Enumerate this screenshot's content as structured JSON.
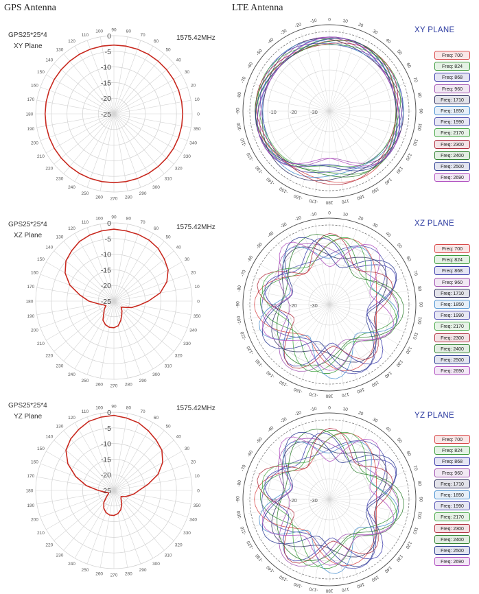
{
  "headers": {
    "gps": "GPS Antenna",
    "lte": "LTE Antenna"
  },
  "colors": {
    "gps_trace": "#c8281e",
    "lte_palette": [
      "#d84848",
      "#3c9a3c",
      "#3a3aaa",
      "#a050b0",
      "#303060",
      "#4a90d0",
      "#5050b0",
      "#48a848",
      "#b03040",
      "#308030",
      "#2a3a90",
      "#b050c0"
    ]
  },
  "gps_panels": [
    {
      "name": "GPS25*25*4",
      "plane": "XY Plane",
      "freq": "1575.42MHz",
      "angle_labels": [
        "0",
        "10",
        "20",
        "30",
        "40",
        "50",
        "60",
        "70",
        "80",
        "90",
        "100",
        "110",
        "120",
        "130",
        "140",
        "150",
        "160",
        "170",
        "180",
        "190",
        "200",
        "210",
        "220",
        "230",
        "240",
        "250",
        "260",
        "270",
        "280",
        "290",
        "300",
        "310",
        "320",
        "330",
        "340",
        "350"
      ],
      "radial_labels": [
        "0",
        "-5",
        "-10",
        "-15",
        "-20",
        "-25"
      ]
    },
    {
      "name": "GPS25*25*4",
      "plane": "XZ Plane",
      "freq": "1575.42MHz",
      "angle_labels": [
        "0",
        "10",
        "20",
        "30",
        "40",
        "50",
        "60",
        "70",
        "80",
        "90",
        "100",
        "110",
        "120",
        "130",
        "140",
        "150",
        "160",
        "170",
        "180",
        "190",
        "200",
        "210",
        "220",
        "230",
        "240",
        "250",
        "260",
        "270",
        "280",
        "290",
        "300",
        "310",
        "320",
        "330",
        "340",
        "350"
      ],
      "radial_labels": [
        "0",
        "-5",
        "-10",
        "-15",
        "-20",
        "-25"
      ]
    },
    {
      "name": "GPS25*25*4",
      "plane": "YZ Plane",
      "freq": "1575.42MHz",
      "angle_labels": [
        "0",
        "10",
        "20",
        "30",
        "40",
        "50",
        "60",
        "70",
        "80",
        "90",
        "100",
        "110",
        "120",
        "130",
        "140",
        "150",
        "160",
        "170",
        "180",
        "190",
        "200",
        "210",
        "220",
        "230",
        "240",
        "250",
        "260",
        "270",
        "280",
        "290",
        "300",
        "310",
        "320",
        "330",
        "340",
        "350"
      ],
      "radial_labels": [
        "0",
        "-5",
        "-10",
        "-15",
        "-20",
        "-25"
      ]
    }
  ],
  "lte_panels": [
    {
      "title": "XY PLANE",
      "angle_labels": [
        "0",
        "10",
        "20",
        "30",
        "40",
        "50",
        "60",
        "70",
        "80",
        "90",
        "100",
        "110",
        "120",
        "130",
        "140",
        "150",
        "160",
        "170",
        "180",
        "-170",
        "-160",
        "-150",
        "-140",
        "-130",
        "-120",
        "-110",
        "-100",
        "-90",
        "-80",
        "-70",
        "-60",
        "-50",
        "-40",
        "-30",
        "-20",
        "-10"
      ],
      "radial_labels": [
        "-10",
        "-20",
        "-30"
      ],
      "legend": [
        "Freq: 700",
        "Freq: 824",
        "Freq: 868",
        "Freq: 960",
        "Freq: 1710",
        "Freq: 1850",
        "Freq: 1990",
        "Freq: 2170",
        "Freq: 2300",
        "Freq: 2400",
        "Freq: 2500",
        "Freq: 2690"
      ]
    },
    {
      "title": "XZ PLANE",
      "angle_labels": [
        "0",
        "10",
        "20",
        "30",
        "40",
        "50",
        "60",
        "70",
        "80",
        "90",
        "100",
        "110",
        "120",
        "130",
        "140",
        "150",
        "160",
        "170",
        "180",
        "-170",
        "-160",
        "-150",
        "-140",
        "-130",
        "-120",
        "-110",
        "-100",
        "-90",
        "-80",
        "-70",
        "-60",
        "-50",
        "-40",
        "-30",
        "-20",
        "-10"
      ],
      "radial_labels": [
        "-10",
        "-20",
        "-30"
      ],
      "legend": [
        "Freq: 700",
        "Freq: 824",
        "Freq: 868",
        "Freq: 960",
        "Freq: 1710",
        "Freq: 1850",
        "Freq: 1990",
        "Freq: 2170",
        "Freq: 2300",
        "Freq: 2400",
        "Freq: 2500",
        "Freq: 2690"
      ]
    },
    {
      "title": "YZ PLANE",
      "angle_labels": [
        "0",
        "10",
        "20",
        "30",
        "40",
        "50",
        "60",
        "70",
        "80",
        "90",
        "100",
        "110",
        "120",
        "130",
        "140",
        "150",
        "160",
        "170",
        "180",
        "-170",
        "-160",
        "-150",
        "-140",
        "-130",
        "-120",
        "-110",
        "-100",
        "-90",
        "-80",
        "-70",
        "-60",
        "-50",
        "-40",
        "-30",
        "-20",
        "-10"
      ],
      "radial_labels": [
        "-10",
        "-20",
        "-30"
      ],
      "legend": [
        "Freq: 700",
        "Freq: 824",
        "Freq: 868",
        "Freq: 960",
        "Freq: 1710",
        "Freq: 1850",
        "Freq: 1990",
        "Freq: 2170",
        "Freq: 2300",
        "Freq: 2400",
        "Freq: 2500",
        "Freq: 2690"
      ]
    }
  ],
  "chart_data": [
    {
      "type": "polar",
      "title": "GPS25*25*4 XY Plane 1575.42MHz",
      "r_range": [
        -25,
        0
      ],
      "angles": [
        0,
        10,
        20,
        30,
        40,
        50,
        60,
        70,
        80,
        90,
        100,
        110,
        120,
        130,
        140,
        150,
        160,
        170,
        180,
        190,
        200,
        210,
        220,
        230,
        240,
        250,
        260,
        270,
        280,
        290,
        300,
        310,
        320,
        330,
        340,
        350
      ],
      "gain_db": [
        -3,
        -3,
        -3,
        -3,
        -3,
        -3,
        -3,
        -3,
        -3,
        -3,
        -3,
        -3,
        -3,
        -3,
        -3,
        -3,
        -3,
        -3,
        -3,
        -3,
        -3,
        -3,
        -3,
        -3,
        -3,
        -3,
        -3,
        -3,
        -3,
        -3,
        -3,
        -3,
        -3,
        -3,
        -3,
        -3
      ]
    },
    {
      "type": "polar",
      "title": "GPS25*25*4 XZ Plane 1575.42MHz",
      "r_range": [
        -25,
        0
      ],
      "angles": [
        0,
        10,
        20,
        30,
        40,
        50,
        60,
        70,
        80,
        90,
        100,
        110,
        120,
        130,
        140,
        150,
        160,
        170,
        180,
        190,
        200,
        210,
        220,
        230,
        240,
        250,
        260,
        270,
        280,
        290,
        300,
        310,
        320,
        330,
        340,
        350
      ],
      "gain_db": [
        -14,
        -10,
        -7,
        -5,
        -4,
        -3,
        -2.5,
        -2.3,
        -2.2,
        -2,
        -2.2,
        -2.5,
        -3,
        -4,
        -5,
        -7,
        -10,
        -14,
        -17,
        -20,
        -21.5,
        -22,
        -21,
        -20,
        -18,
        -17,
        -16.5,
        -16.5,
        -17,
        -18.5,
        -20,
        -21,
        -22,
        -21,
        -19,
        -17
      ]
    },
    {
      "type": "polar",
      "title": "GPS25*25*4 YZ Plane 1575.42MHz",
      "r_range": [
        -25,
        0
      ],
      "angles": [
        0,
        10,
        20,
        30,
        40,
        50,
        60,
        70,
        80,
        90,
        100,
        110,
        120,
        130,
        140,
        150,
        160,
        170,
        180,
        190,
        200,
        210,
        220,
        230,
        240,
        250,
        260,
        270,
        280,
        290,
        300,
        310,
        320,
        330,
        340,
        350
      ],
      "gain_db": [
        -17,
        -14,
        -10,
        -7,
        -5,
        -4,
        -3,
        -2,
        -1.5,
        -1,
        -1.2,
        -1.5,
        -2.5,
        -3.5,
        -5,
        -8,
        -12,
        -16,
        -20,
        -22,
        -23,
        -23,
        -22,
        -20,
        -18.5,
        -17.5,
        -17,
        -17,
        -17.5,
        -18.5,
        -20,
        -21.5,
        -22,
        -21,
        -20,
        -18.5
      ]
    }
  ]
}
